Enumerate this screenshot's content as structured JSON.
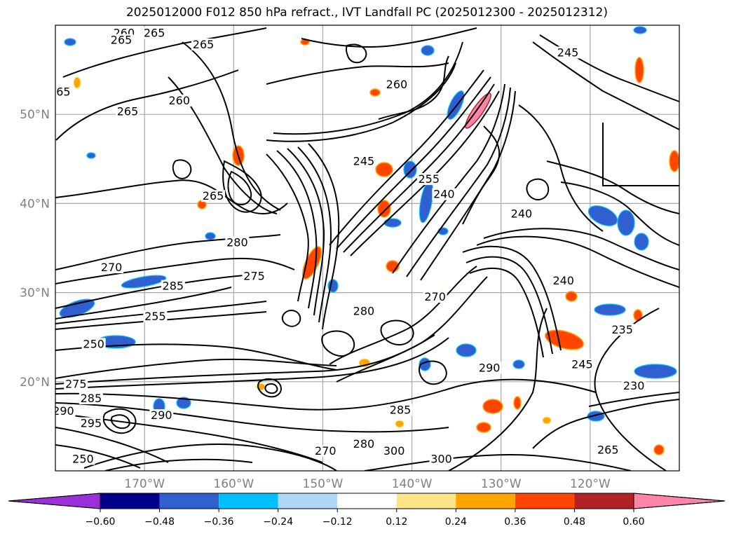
{
  "title": "2025012000 F012 850 hPa refract., IVT Landfall PC (2025012300 - 2025012312)",
  "chart_data": {
    "type": "heatmap",
    "title": "2025012000 F012 850 hPa refract., IVT Landfall PC (2025012300 - 2025012312)",
    "grid": true,
    "lat_range": [
      10,
      60
    ],
    "lon_range": [
      -180,
      -110
    ],
    "lat_ticks": [
      {
        "value": 20,
        "label": "20°N"
      },
      {
        "value": 30,
        "label": "30°N"
      },
      {
        "value": 40,
        "label": "40°N"
      },
      {
        "value": 50,
        "label": "50°N"
      }
    ],
    "lon_ticks": [
      {
        "value": -170,
        "label": "170°W"
      },
      {
        "value": -160,
        "label": "160°W"
      },
      {
        "value": -150,
        "label": "150°W"
      },
      {
        "value": -140,
        "label": "140°W"
      },
      {
        "value": -130,
        "label": "130°W"
      },
      {
        "value": -120,
        "label": "120°W"
      }
    ],
    "colorbar": {
      "extend": "both",
      "levels": [
        -0.6,
        -0.48,
        -0.36,
        -0.24,
        -0.12,
        0.12,
        0.24,
        0.36,
        0.48,
        0.6
      ],
      "tick_labels": [
        "−0.60",
        "−0.48",
        "−0.36",
        "−0.24",
        "−0.12",
        "0.12",
        "0.24",
        "0.36",
        "0.48",
        "0.60"
      ],
      "colors": [
        "#9b30d9",
        "#00008b",
        "#3060d0",
        "#00bfff",
        "#add8f5",
        "#ffffff",
        "#fde68a",
        "#ffa500",
        "#ff4500",
        "#b22222",
        "#ff85a8"
      ]
    },
    "contour_labels": [
      {
        "text": "260",
        "lon": -172.3,
        "lat": 59.1
      },
      {
        "text": "265",
        "lon": -172.6,
        "lat": 58.3
      },
      {
        "text": "265",
        "lon": -168.9,
        "lat": 59.1
      },
      {
        "text": "265",
        "lon": -163.4,
        "lat": 57.8
      },
      {
        "text": "65",
        "lon": -179.1,
        "lat": 52.5
      },
      {
        "text": "265",
        "lon": -171.9,
        "lat": 50.3
      },
      {
        "text": "260",
        "lon": -166.1,
        "lat": 51.5
      },
      {
        "text": "260",
        "lon": -141.7,
        "lat": 53.3
      },
      {
        "text": "245",
        "lon": -122.5,
        "lat": 56.9
      },
      {
        "text": "245",
        "lon": -145.4,
        "lat": 44.7
      },
      {
        "text": "255",
        "lon": -138.1,
        "lat": 42.7
      },
      {
        "text": "240",
        "lon": -136.4,
        "lat": 41.0
      },
      {
        "text": "240",
        "lon": -127.7,
        "lat": 38.8
      },
      {
        "text": "265",
        "lon": -162.3,
        "lat": 40.8
      },
      {
        "text": "280",
        "lon": -159.6,
        "lat": 35.6
      },
      {
        "text": "270",
        "lon": -173.7,
        "lat": 32.8
      },
      {
        "text": "275",
        "lon": -157.7,
        "lat": 31.8
      },
      {
        "text": "285",
        "lon": -166.8,
        "lat": 30.7
      },
      {
        "text": "240",
        "lon": -123.0,
        "lat": 31.3
      },
      {
        "text": "255",
        "lon": -168.8,
        "lat": 27.3
      },
      {
        "text": "250",
        "lon": -175.7,
        "lat": 24.2
      },
      {
        "text": "280",
        "lon": -145.4,
        "lat": 27.9
      },
      {
        "text": "270",
        "lon": -137.4,
        "lat": 29.5
      },
      {
        "text": "235",
        "lon": -116.4,
        "lat": 25.8
      },
      {
        "text": "245",
        "lon": -120.9,
        "lat": 21.9
      },
      {
        "text": "230",
        "lon": -115.1,
        "lat": 19.5
      },
      {
        "text": "290",
        "lon": -131.3,
        "lat": 21.5
      },
      {
        "text": "275",
        "lon": -177.7,
        "lat": 19.7
      },
      {
        "text": "285",
        "lon": -176.0,
        "lat": 18.1
      },
      {
        "text": "285",
        "lon": -141.3,
        "lat": 16.8
      },
      {
        "text": "290",
        "lon": -179.1,
        "lat": 16.7
      },
      {
        "text": "290",
        "lon": -168.1,
        "lat": 16.2
      },
      {
        "text": "295",
        "lon": -176.0,
        "lat": 15.3
      },
      {
        "text": "300",
        "lon": -142.0,
        "lat": 12.2
      },
      {
        "text": "300",
        "lon": -136.7,
        "lat": 11.3
      },
      {
        "text": "270",
        "lon": -149.7,
        "lat": 12.2
      },
      {
        "text": "280",
        "lon": -145.4,
        "lat": 13.0
      },
      {
        "text": "250",
        "lon": -176.9,
        "lat": 11.3
      },
      {
        "text": "265",
        "lon": -118.0,
        "lat": 12.3
      }
    ]
  }
}
